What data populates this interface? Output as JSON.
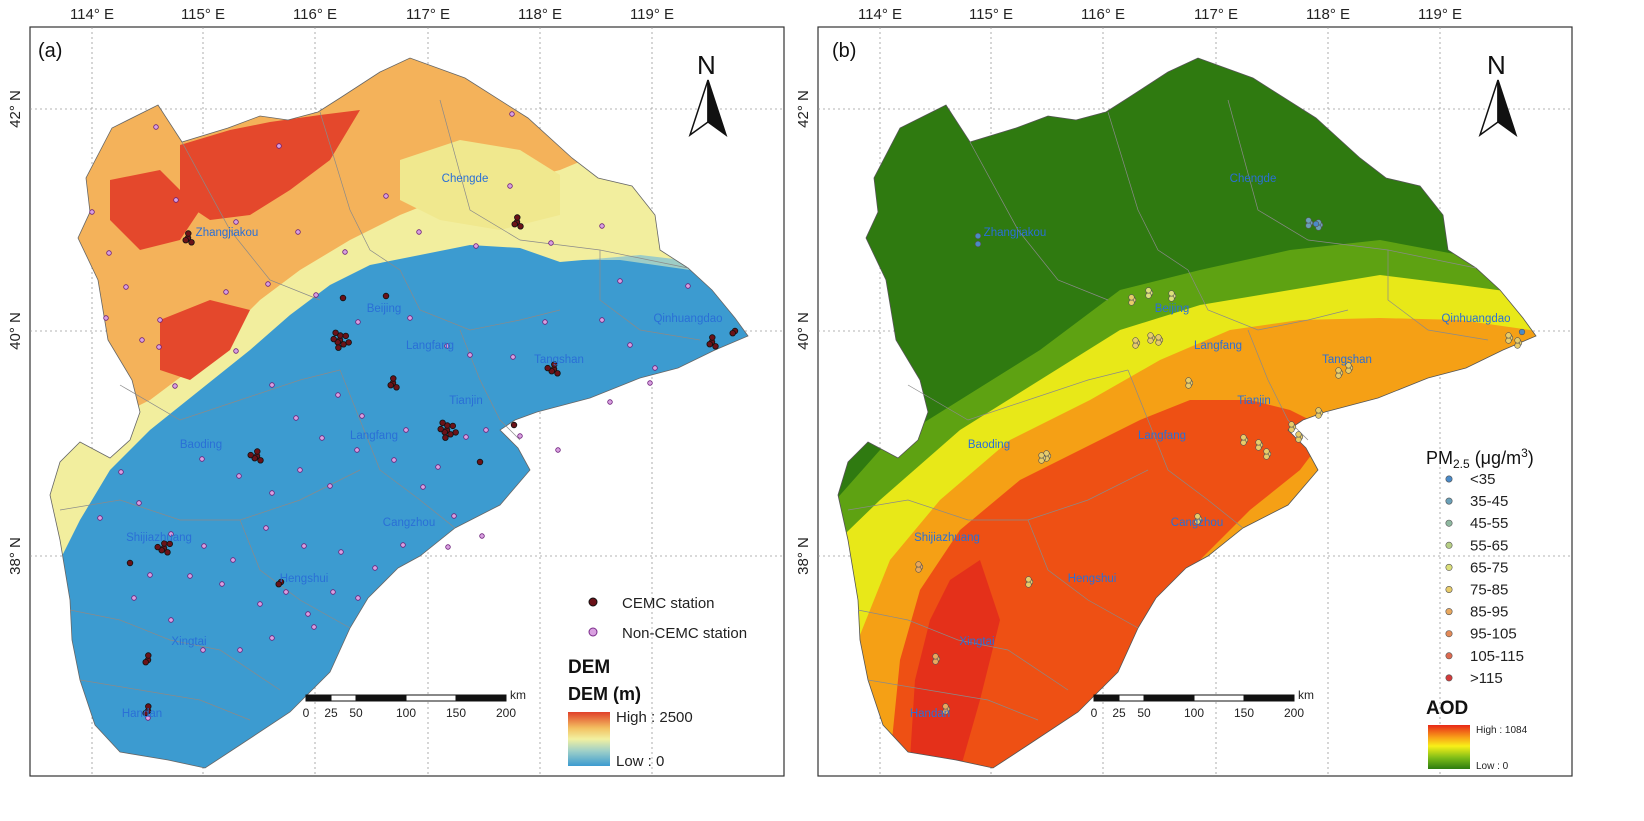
{
  "figure": {
    "lon_ticks": [
      "114° E",
      "115° E",
      "116° E",
      "117° E",
      "118° E",
      "119° E"
    ],
    "lat_ticks": [
      "42° N",
      "40° N",
      "38° N"
    ],
    "cities": [
      "Chengde",
      "Zhangjiakou",
      "Beijing",
      "Qinhuangdao",
      "Langfang",
      "Tangshan",
      "Tianjin",
      "Baoding",
      "Langfang",
      "Cangzhou",
      "Shijiazhuang",
      "Hengshui",
      "Xingtai",
      "Handan"
    ],
    "scale_bar": {
      "labels": [
        "0",
        "25",
        "50",
        "100",
        "150",
        "200"
      ],
      "unit": "km"
    },
    "north_label": "N"
  },
  "panel_a": {
    "label": "(a)",
    "legend": {
      "cemc": "CEMC station",
      "non_cemc": "Non-CEMC station",
      "section_title": "DEM",
      "ramp_title": "DEM (m)",
      "high": "High : 2500",
      "low": "Low : 0"
    },
    "colors": {
      "cemc": "#6b1218",
      "non_cemc": "#d9a0e0",
      "ramp": [
        "#e0402a",
        "#f3c162",
        "#f2f0a0",
        "#9fd0c8",
        "#3c9bd0"
      ]
    }
  },
  "panel_b": {
    "label": "(b)",
    "legend": {
      "pm_prefix": "PM",
      "pm_sub": "2.5",
      "pm_unit": " (μg/m",
      "pm_sup": "3",
      "pm_close": ")",
      "classes": [
        "<35",
        "35-45",
        "45-55",
        "55-65",
        "65-75",
        "75-85",
        "85-95",
        "95-105",
        "105-115",
        ">115"
      ],
      "class_colors": [
        "#4a8ac8",
        "#6aa0b8",
        "#8fb8a0",
        "#b7cf86",
        "#dce07a",
        "#e8cc6a",
        "#e9a85e",
        "#e38a58",
        "#dc6a50",
        "#d33a3a"
      ],
      "aod_title": "AOD",
      "high": "High : 1084",
      "low": "Low : 0"
    },
    "colors": {
      "ramp": [
        "#e82818",
        "#f8a018",
        "#f8f018",
        "#7cbc18",
        "#2c7c10"
      ]
    }
  }
}
